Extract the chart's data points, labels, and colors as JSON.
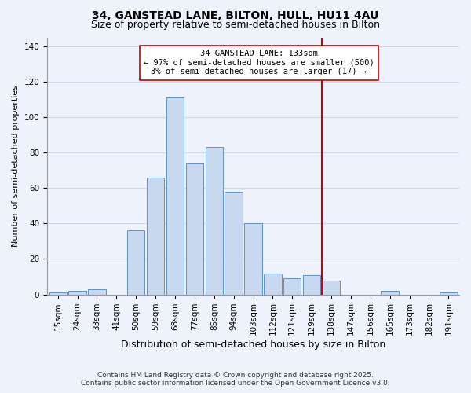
{
  "title": "34, GANSTEAD LANE, BILTON, HULL, HU11 4AU",
  "subtitle": "Size of property relative to semi-detached houses in Bilton",
  "xlabel": "Distribution of semi-detached houses by size in Bilton",
  "ylabel": "Number of semi-detached properties",
  "bar_labels": [
    "15sqm",
    "24sqm",
    "33sqm",
    "41sqm",
    "50sqm",
    "59sqm",
    "68sqm",
    "77sqm",
    "85sqm",
    "94sqm",
    "103sqm",
    "112sqm",
    "121sqm",
    "129sqm",
    "138sqm",
    "147sqm",
    "156sqm",
    "165sqm",
    "173sqm",
    "182sqm",
    "191sqm"
  ],
  "bar_values": [
    1,
    2,
    3,
    0,
    36,
    66,
    111,
    74,
    83,
    58,
    40,
    12,
    9,
    11,
    8,
    0,
    0,
    2,
    0,
    0,
    1
  ],
  "bar_color": "#c8d8ee",
  "bar_edge_color": "#6090c8",
  "grid_color": "#d0d8e8",
  "background_color": "#eef2fc",
  "vline_x_index": 13.5,
  "vline_color": "#cc0000",
  "annotation_text": "34 GANSTEAD LANE: 133sqm\n← 97% of semi-detached houses are smaller (500)\n3% of semi-detached houses are larger (17) →",
  "annotation_box_color": "#ffffff",
  "annotation_box_edge": "#cc0000",
  "ylim": [
    0,
    145
  ],
  "yticks": [
    0,
    20,
    40,
    60,
    80,
    100,
    120,
    140
  ],
  "footer_line1": "Contains HM Land Registry data © Crown copyright and database right 2025.",
  "footer_line2": "Contains public sector information licensed under the Open Government Licence v3.0.",
  "title_fontsize": 10,
  "subtitle_fontsize": 9,
  "xlabel_fontsize": 9,
  "ylabel_fontsize": 8,
  "tick_fontsize": 7.5,
  "annotation_fontsize": 7.5,
  "footer_fontsize": 6.5
}
